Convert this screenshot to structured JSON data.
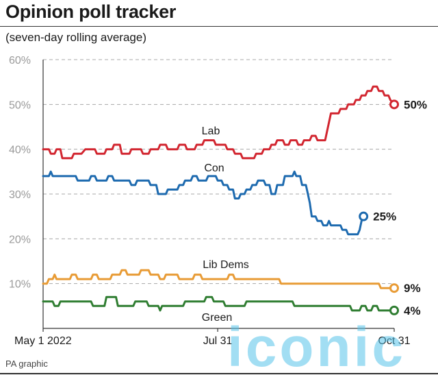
{
  "header": {
    "title": "Opinion poll tracker",
    "subtitle": "(seven-day rolling average)"
  },
  "footer": {
    "credit": "PA graphic"
  },
  "watermark": {
    "text": "iconic"
  },
  "chart_data": {
    "type": "line",
    "title": "Opinion poll tracker",
    "subtitle": "(seven-day rolling average)",
    "xlabel": "",
    "ylabel": "",
    "ylim": [
      0,
      60
    ],
    "yticks": [
      "60%",
      "50%",
      "40%",
      "30%",
      "20%",
      "10%"
    ],
    "ytick_values": [
      60,
      50,
      40,
      30,
      20,
      10
    ],
    "xticks": [
      "May 1 2022",
      "Jul 31",
      "Oct 31"
    ],
    "xtick_days": [
      0,
      91,
      183
    ],
    "xlim_days": [
      0,
      183
    ],
    "grid": "horizontal dashed",
    "series": [
      {
        "name": "Lab",
        "color": "#d22630",
        "end_label": "50%",
        "points": [
          [
            0,
            40
          ],
          [
            3,
            40
          ],
          [
            4,
            39
          ],
          [
            6,
            39
          ],
          [
            7,
            40
          ],
          [
            9,
            40
          ],
          [
            10,
            38
          ],
          [
            15,
            38
          ],
          [
            16,
            39
          ],
          [
            20,
            39
          ],
          [
            22,
            40
          ],
          [
            27,
            40
          ],
          [
            28,
            39
          ],
          [
            32,
            39
          ],
          [
            33,
            40
          ],
          [
            36,
            40
          ],
          [
            37,
            41
          ],
          [
            40,
            41
          ],
          [
            41,
            39
          ],
          [
            45,
            39
          ],
          [
            46,
            40
          ],
          [
            51,
            40
          ],
          [
            52,
            39
          ],
          [
            55,
            39
          ],
          [
            56,
            40
          ],
          [
            60,
            40
          ],
          [
            61,
            41
          ],
          [
            64,
            41
          ],
          [
            65,
            40
          ],
          [
            70,
            40
          ],
          [
            71,
            41
          ],
          [
            74,
            41
          ],
          [
            75,
            40
          ],
          [
            79,
            40
          ],
          [
            80,
            41
          ],
          [
            83,
            41
          ],
          [
            84,
            42
          ],
          [
            89,
            42
          ],
          [
            90,
            41
          ],
          [
            95,
            41
          ],
          [
            96,
            40
          ],
          [
            99,
            40
          ],
          [
            100,
            39
          ],
          [
            103,
            39
          ],
          [
            104,
            38
          ],
          [
            110,
            38
          ],
          [
            111,
            39
          ],
          [
            114,
            39
          ],
          [
            115,
            40
          ],
          [
            118,
            40
          ],
          [
            119,
            41
          ],
          [
            121,
            41
          ],
          [
            122,
            42
          ],
          [
            125,
            42
          ],
          [
            126,
            41
          ],
          [
            128,
            41
          ],
          [
            129,
            42
          ],
          [
            132,
            42
          ],
          [
            133,
            41
          ],
          [
            135,
            41
          ],
          [
            136,
            42
          ],
          [
            139,
            42
          ],
          [
            140,
            43
          ],
          [
            142,
            43
          ],
          [
            143,
            42
          ],
          [
            147,
            42
          ],
          [
            148,
            44
          ],
          [
            149,
            46
          ],
          [
            150,
            48
          ],
          [
            154,
            48
          ],
          [
            155,
            49
          ],
          [
            158,
            49
          ],
          [
            159,
            50
          ],
          [
            162,
            50
          ],
          [
            163,
            51
          ],
          [
            165,
            51
          ],
          [
            166,
            52
          ],
          [
            168,
            52
          ],
          [
            169,
            53
          ],
          [
            171,
            53
          ],
          [
            172,
            54
          ],
          [
            174,
            54
          ],
          [
            175,
            53
          ],
          [
            177,
            53
          ],
          [
            178,
            52
          ],
          [
            180,
            52
          ],
          [
            181,
            51
          ],
          [
            183,
            50
          ]
        ]
      },
      {
        "name": "Con",
        "color": "#1d6aaf",
        "end_label": "25%",
        "points": [
          [
            0,
            34
          ],
          [
            3,
            34
          ],
          [
            4,
            35
          ],
          [
            5,
            34
          ],
          [
            17,
            34
          ],
          [
            18,
            33
          ],
          [
            24,
            33
          ],
          [
            25,
            34
          ],
          [
            27,
            34
          ],
          [
            28,
            33
          ],
          [
            33,
            33
          ],
          [
            34,
            34
          ],
          [
            36,
            34
          ],
          [
            37,
            33
          ],
          [
            45,
            33
          ],
          [
            46,
            32
          ],
          [
            48,
            32
          ],
          [
            49,
            33
          ],
          [
            55,
            33
          ],
          [
            56,
            32
          ],
          [
            59,
            32
          ],
          [
            60,
            30
          ],
          [
            64,
            30
          ],
          [
            65,
            31
          ],
          [
            70,
            31
          ],
          [
            71,
            32
          ],
          [
            73,
            32
          ],
          [
            74,
            33
          ],
          [
            77,
            33
          ],
          [
            78,
            34
          ],
          [
            80,
            34
          ],
          [
            81,
            33
          ],
          [
            85,
            33
          ],
          [
            86,
            34
          ],
          [
            90,
            34
          ],
          [
            91,
            33
          ],
          [
            93,
            33
          ],
          [
            94,
            32
          ],
          [
            96,
            32
          ],
          [
            97,
            31
          ],
          [
            99,
            31
          ],
          [
            100,
            29
          ],
          [
            102,
            29
          ],
          [
            103,
            30
          ],
          [
            105,
            30
          ],
          [
            106,
            31
          ],
          [
            108,
            31
          ],
          [
            109,
            32
          ],
          [
            111,
            32
          ],
          [
            112,
            33
          ],
          [
            115,
            33
          ],
          [
            116,
            32
          ],
          [
            118,
            32
          ],
          [
            119,
            30
          ],
          [
            121,
            30
          ],
          [
            122,
            32
          ],
          [
            125,
            32
          ],
          [
            126,
            34
          ],
          [
            130,
            34
          ],
          [
            131,
            35
          ],
          [
            132,
            34
          ],
          [
            134,
            34
          ],
          [
            135,
            32
          ],
          [
            137,
            32
          ],
          [
            138,
            30
          ],
          [
            139,
            28
          ],
          [
            140,
            25
          ],
          [
            142,
            25
          ],
          [
            143,
            24
          ],
          [
            145,
            24
          ],
          [
            146,
            23
          ],
          [
            148,
            23
          ],
          [
            149,
            24
          ],
          [
            150,
            23
          ],
          [
            155,
            23
          ],
          [
            156,
            22
          ],
          [
            158,
            22
          ],
          [
            159,
            21
          ],
          [
            164,
            21
          ],
          [
            165,
            22
          ],
          [
            166,
            24
          ],
          [
            167,
            25
          ]
        ]
      },
      {
        "name": "Lib Dems",
        "color": "#e89b35",
        "end_label": "9%",
        "points": [
          [
            0,
            10
          ],
          [
            2,
            10
          ],
          [
            3,
            11
          ],
          [
            5,
            11
          ],
          [
            6,
            12
          ],
          [
            7,
            11
          ],
          [
            14,
            11
          ],
          [
            15,
            12
          ],
          [
            17,
            12
          ],
          [
            18,
            11
          ],
          [
            25,
            11
          ],
          [
            26,
            12
          ],
          [
            28,
            12
          ],
          [
            29,
            11
          ],
          [
            35,
            11
          ],
          [
            36,
            12
          ],
          [
            40,
            12
          ],
          [
            41,
            13
          ],
          [
            43,
            13
          ],
          [
            44,
            12
          ],
          [
            50,
            12
          ],
          [
            51,
            13
          ],
          [
            55,
            13
          ],
          [
            56,
            12
          ],
          [
            60,
            12
          ],
          [
            61,
            11
          ],
          [
            63,
            11
          ],
          [
            64,
            12
          ],
          [
            70,
            12
          ],
          [
            71,
            11
          ],
          [
            78,
            11
          ],
          [
            79,
            12
          ],
          [
            82,
            12
          ],
          [
            83,
            11
          ],
          [
            96,
            11
          ],
          [
            97,
            12
          ],
          [
            99,
            12
          ],
          [
            100,
            11
          ],
          [
            123,
            11
          ],
          [
            124,
            10
          ],
          [
            175,
            10
          ],
          [
            176,
            9
          ],
          [
            183,
            9
          ]
        ]
      },
      {
        "name": "Green",
        "color": "#2f7d31",
        "end_label": "4%",
        "points": [
          [
            0,
            6
          ],
          [
            5,
            6
          ],
          [
            6,
            5
          ],
          [
            8,
            5
          ],
          [
            9,
            6
          ],
          [
            25,
            6
          ],
          [
            26,
            5
          ],
          [
            32,
            5
          ],
          [
            33,
            7
          ],
          [
            38,
            7
          ],
          [
            39,
            5
          ],
          [
            47,
            5
          ],
          [
            48,
            6
          ],
          [
            54,
            6
          ],
          [
            55,
            5
          ],
          [
            60,
            5
          ],
          [
            61,
            4
          ],
          [
            62,
            5
          ],
          [
            73,
            5
          ],
          [
            74,
            6
          ],
          [
            84,
            6
          ],
          [
            85,
            7
          ],
          [
            88,
            7
          ],
          [
            89,
            6
          ],
          [
            94,
            6
          ],
          [
            95,
            5
          ],
          [
            105,
            5
          ],
          [
            106,
            6
          ],
          [
            130,
            6
          ],
          [
            131,
            5
          ],
          [
            160,
            5
          ],
          [
            161,
            4
          ],
          [
            165,
            4
          ],
          [
            166,
            5
          ],
          [
            168,
            5
          ],
          [
            169,
            4
          ],
          [
            171,
            4
          ],
          [
            172,
            5
          ],
          [
            174,
            5
          ],
          [
            175,
            4
          ],
          [
            183,
            4
          ]
        ]
      }
    ],
    "series_labels": [
      {
        "series": "Lab",
        "text": "Lab"
      },
      {
        "series": "Con",
        "text": "Con"
      },
      {
        "series": "Lib Dems",
        "text": "Lib Dems"
      },
      {
        "series": "Green",
        "text": "Green"
      }
    ]
  }
}
